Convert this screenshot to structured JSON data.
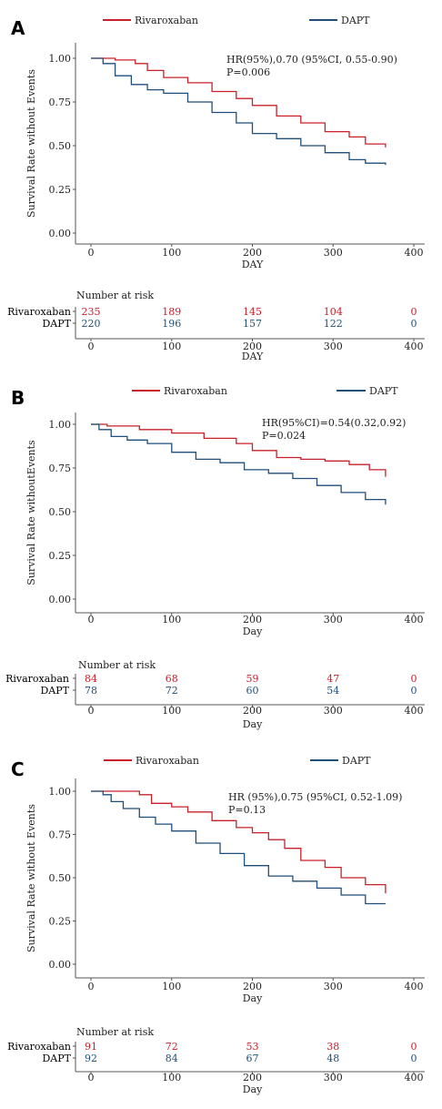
{
  "colors": {
    "rivaroxaban": "#c8202a",
    "dapt": "#1f4e79",
    "axis": "#555555"
  },
  "chart_data": [
    {
      "type": "line",
      "panel": "A",
      "legend": [
        "Rivaroxaban",
        "DAPT"
      ],
      "xlabel": "DAY",
      "ylabel": "Survival Rate without Events",
      "xlim": [
        0,
        400
      ],
      "ylim": [
        0,
        1
      ],
      "xticks": [
        "0",
        "100",
        "200",
        "300",
        "400"
      ],
      "yticks": [
        "0.00",
        "0.25",
        "0.50",
        "0.75",
        "1.00"
      ],
      "annotation": [
        "HR(95%),0.70 (95%CI, 0.55-0.90)",
        "P=0.006"
      ],
      "series": [
        {
          "name": "Rivaroxaban",
          "x": [
            0,
            30,
            55,
            70,
            90,
            120,
            150,
            180,
            200,
            230,
            260,
            290,
            320,
            340,
            365
          ],
          "y": [
            1.0,
            0.99,
            0.97,
            0.93,
            0.89,
            0.86,
            0.81,
            0.77,
            0.73,
            0.67,
            0.63,
            0.58,
            0.55,
            0.51,
            0.49
          ]
        },
        {
          "name": "DAPT",
          "x": [
            0,
            15,
            30,
            50,
            70,
            90,
            120,
            150,
            180,
            200,
            230,
            260,
            290,
            320,
            340,
            365
          ],
          "y": [
            1.0,
            0.97,
            0.9,
            0.85,
            0.82,
            0.8,
            0.75,
            0.69,
            0.63,
            0.57,
            0.54,
            0.5,
            0.46,
            0.42,
            0.4,
            0.39
          ]
        }
      ],
      "risk_table": {
        "title": "Number at risk",
        "xlabel": "DAY",
        "groups": [
          {
            "name": "Rivaroxaban",
            "values": [
              "235",
              "189",
              "145",
              "104",
              "0"
            ]
          },
          {
            "name": "DAPT",
            "values": [
              "220",
              "196",
              "157",
              "122",
              "0"
            ]
          }
        ]
      }
    },
    {
      "type": "line",
      "panel": "B",
      "legend": [
        "Rivaroxaban",
        "DAPT"
      ],
      "xlabel": "Day",
      "ylabel": "Survival Rate withoutEvents",
      "xlim": [
        0,
        400
      ],
      "ylim": [
        0,
        1
      ],
      "xticks": [
        "0",
        "100",
        "200",
        "300",
        "400"
      ],
      "yticks": [
        "0.00",
        "0.25",
        "0.50",
        "0.75",
        "1.00"
      ],
      "annotation": [
        "HR(95%CI)=0.54(0.32,0.92)",
        "P=0.024"
      ],
      "series": [
        {
          "name": "Rivaroxaban",
          "x": [
            0,
            20,
            60,
            100,
            140,
            180,
            200,
            230,
            260,
            290,
            320,
            345,
            365
          ],
          "y": [
            1.0,
            0.99,
            0.97,
            0.95,
            0.92,
            0.89,
            0.85,
            0.81,
            0.8,
            0.79,
            0.77,
            0.74,
            0.7
          ]
        },
        {
          "name": "DAPT",
          "x": [
            0,
            10,
            25,
            45,
            70,
            100,
            130,
            160,
            190,
            220,
            250,
            280,
            310,
            340,
            365
          ],
          "y": [
            1.0,
            0.97,
            0.93,
            0.91,
            0.89,
            0.84,
            0.8,
            0.78,
            0.74,
            0.72,
            0.69,
            0.65,
            0.61,
            0.57,
            0.54
          ]
        }
      ],
      "risk_table": {
        "title": "Number at risk",
        "xlabel": "Day",
        "groups": [
          {
            "name": "Rivaroxaban",
            "values": [
              "84",
              "68",
              "59",
              "47",
              "0"
            ]
          },
          {
            "name": "DAPT",
            "values": [
              "78",
              "72",
              "60",
              "54",
              "0"
            ]
          }
        ]
      }
    },
    {
      "type": "line",
      "panel": "C",
      "legend": [
        "Rivaroxaban",
        "DAPT"
      ],
      "xlabel": "Day",
      "ylabel": "Survival Rate without Events",
      "xlim": [
        0,
        400
      ],
      "ylim": [
        0,
        1
      ],
      "xticks": [
        "0",
        "100",
        "200",
        "300",
        "400"
      ],
      "yticks": [
        "0.00",
        "0.25",
        "0.50",
        "0.75",
        "1.00"
      ],
      "annotation": [
        "HR (95%),0.75 (95%CI, 0.52-1.09)",
        "P=0.13"
      ],
      "series": [
        {
          "name": "Rivaroxaban",
          "x": [
            0,
            40,
            60,
            75,
            100,
            120,
            150,
            180,
            200,
            220,
            240,
            260,
            290,
            310,
            340,
            365
          ],
          "y": [
            1.0,
            1.0,
            0.98,
            0.93,
            0.91,
            0.88,
            0.83,
            0.79,
            0.76,
            0.72,
            0.67,
            0.6,
            0.56,
            0.5,
            0.46,
            0.41
          ]
        },
        {
          "name": "DAPT",
          "x": [
            0,
            15,
            25,
            40,
            60,
            80,
            100,
            130,
            160,
            190,
            220,
            250,
            280,
            310,
            340,
            365
          ],
          "y": [
            1.0,
            0.98,
            0.94,
            0.9,
            0.85,
            0.81,
            0.77,
            0.7,
            0.64,
            0.57,
            0.51,
            0.48,
            0.44,
            0.4,
            0.35,
            0.35
          ]
        }
      ],
      "risk_table": {
        "title": "Number at risk",
        "xlabel": "Day",
        "groups": [
          {
            "name": "Rivaroxaban",
            "values": [
              "91",
              "72",
              "53",
              "38",
              "0"
            ]
          },
          {
            "name": "DAPT",
            "values": [
              "92",
              "84",
              "67",
              "48",
              "0"
            ]
          }
        ]
      }
    }
  ]
}
